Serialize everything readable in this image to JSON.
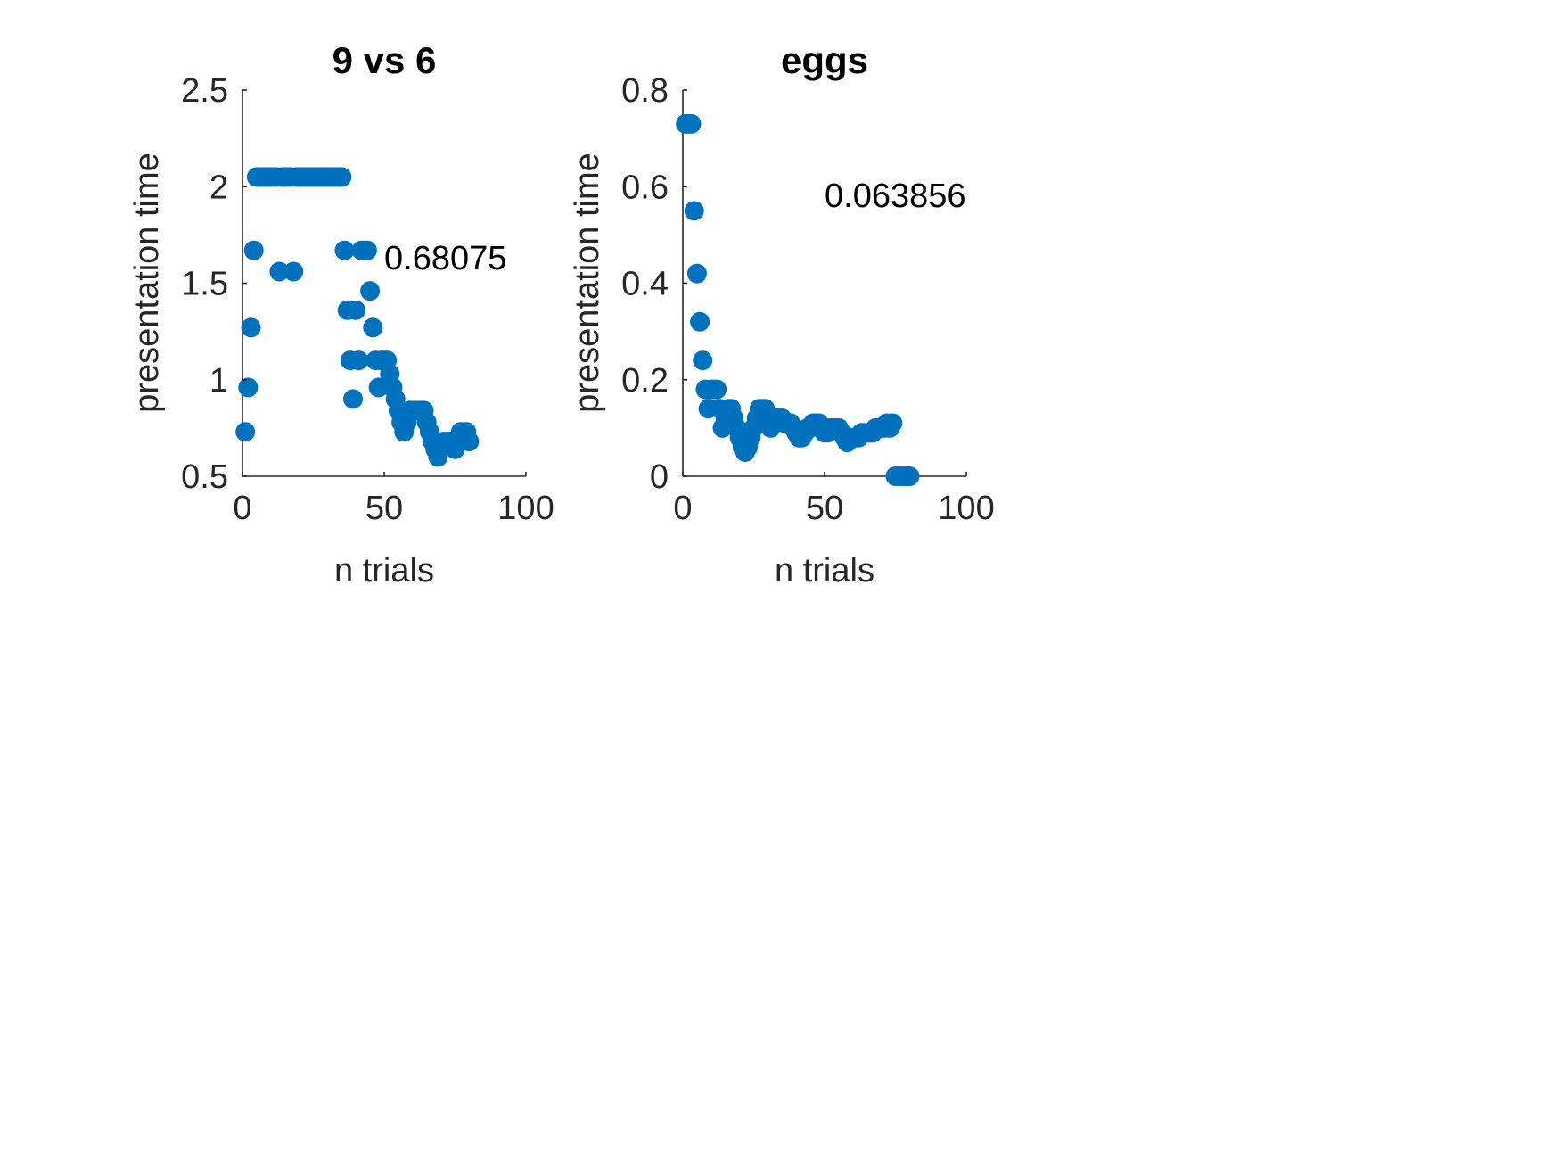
{
  "colors": {
    "marker": "#0072BD",
    "axis": "#262626",
    "background": "#ffffff"
  },
  "chart_data": [
    {
      "type": "scatter",
      "title": "9 vs 6",
      "xlabel": "n trials",
      "ylabel": "presentation time",
      "xlim": [
        0,
        100
      ],
      "ylim": [
        0.5,
        2.5
      ],
      "xticks": [
        "0",
        "50",
        "100"
      ],
      "yticks": [
        "0.5",
        "1",
        "1.5",
        "2",
        "2.5"
      ],
      "annotation": {
        "text": "0.68075",
        "x": 51,
        "y": 1.62
      },
      "grid": false,
      "marker_color": "#0072BD",
      "x": [
        1,
        2,
        3,
        4,
        5,
        6,
        7,
        8,
        9,
        10,
        11,
        12,
        13,
        14,
        15,
        16,
        17,
        18,
        19,
        20,
        21,
        22,
        23,
        24,
        25,
        26,
        27,
        28,
        29,
        30,
        31,
        32,
        33,
        34,
        35,
        36,
        37,
        38,
        39,
        40,
        41,
        42,
        43,
        44,
        45,
        46,
        47,
        48,
        49,
        50,
        51,
        52,
        53,
        54,
        55,
        56,
        57,
        58,
        59,
        60,
        61,
        62,
        63,
        64,
        65,
        66,
        67,
        68,
        69,
        70,
        71,
        72,
        73,
        74,
        75,
        76,
        77,
        78,
        79,
        80
      ],
      "y": [
        0.73,
        0.96,
        1.27,
        1.67,
        2.05,
        2.05,
        2.05,
        2.05,
        2.05,
        2.05,
        2.05,
        2.05,
        1.56,
        2.05,
        2.05,
        2.05,
        2.05,
        1.56,
        2.05,
        2.05,
        2.05,
        2.05,
        2.05,
        2.05,
        2.05,
        2.05,
        2.05,
        2.05,
        2.05,
        2.05,
        2.05,
        2.05,
        2.05,
        2.05,
        2.05,
        1.67,
        1.36,
        1.1,
        0.9,
        1.36,
        1.1,
        1.67,
        1.67,
        1.67,
        1.46,
        1.27,
        1.1,
        0.96,
        1.1,
        1.1,
        1.1,
        1.03,
        0.96,
        0.9,
        0.84,
        0.78,
        0.73,
        0.78,
        0.84,
        0.84,
        0.84,
        0.84,
        0.84,
        0.84,
        0.78,
        0.73,
        0.68,
        0.64,
        0.6,
        0.64,
        0.68,
        0.68,
        0.68,
        0.68,
        0.64,
        0.68,
        0.73,
        0.73,
        0.73,
        0.68
      ]
    },
    {
      "type": "scatter",
      "title": "eggs",
      "xlabel": "n trials",
      "ylabel": "presentation time",
      "xlim": [
        0,
        100
      ],
      "ylim": [
        0,
        0.8
      ],
      "xticks": [
        "0",
        "50",
        "100"
      ],
      "yticks": [
        "0",
        "0.2",
        "0.4",
        "0.6",
        "0.8"
      ],
      "annotation": {
        "text": "0.063856",
        "x": 50,
        "y": 0.58
      },
      "grid": false,
      "marker_color": "#0072BD",
      "x": [
        1,
        2,
        3,
        4,
        5,
        6,
        7,
        8,
        9,
        10,
        11,
        12,
        13,
        14,
        15,
        16,
        17,
        18,
        19,
        20,
        21,
        22,
        23,
        24,
        25,
        26,
        27,
        28,
        29,
        30,
        31,
        32,
        33,
        34,
        35,
        36,
        37,
        38,
        39,
        40,
        41,
        42,
        43,
        44,
        45,
        46,
        47,
        48,
        49,
        50,
        51,
        52,
        53,
        54,
        55,
        56,
        57,
        58,
        59,
        60,
        61,
        62,
        63,
        64,
        65,
        66,
        67,
        68,
        69,
        70,
        71,
        72,
        73,
        74,
        75,
        76,
        77,
        78,
        79,
        80
      ],
      "y": [
        0.73,
        0.73,
        0.73,
        0.55,
        0.42,
        0.32,
        0.24,
        0.18,
        0.14,
        0.18,
        0.18,
        0.18,
        0.14,
        0.1,
        0.12,
        0.14,
        0.14,
        0.12,
        0.1,
        0.08,
        0.06,
        0.05,
        0.06,
        0.08,
        0.1,
        0.12,
        0.14,
        0.14,
        0.14,
        0.12,
        0.1,
        0.12,
        0.12,
        0.12,
        0.12,
        0.11,
        0.11,
        0.11,
        0.1,
        0.09,
        0.08,
        0.08,
        0.09,
        0.1,
        0.1,
        0.11,
        0.11,
        0.11,
        0.1,
        0.09,
        0.09,
        0.1,
        0.1,
        0.1,
        0.1,
        0.09,
        0.08,
        0.07,
        0.08,
        0.08,
        0.08,
        0.08,
        0.09,
        0.09,
        0.09,
        0.09,
        0.09,
        0.1,
        0.1,
        0.1,
        0.1,
        0.11,
        0.1,
        0.11,
        0.0,
        0.0,
        0.0,
        0.0,
        0.0,
        0.0
      ]
    }
  ]
}
